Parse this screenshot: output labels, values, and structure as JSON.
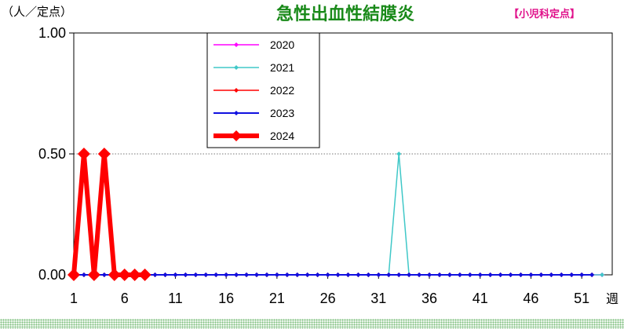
{
  "header": {
    "unit_label": "（人／定点）",
    "title": "急性出血性結膜炎",
    "subtitle": "【小児科定点】",
    "x_unit": "週"
  },
  "chart_data": {
    "type": "line",
    "title": "急性出血性結膜炎",
    "ylabel": "（人／定点）",
    "xlabel": "週",
    "ylim": [
      0,
      1
    ],
    "xlim": [
      1,
      53
    ],
    "yticks": [
      "0.00",
      "0.50",
      "1.00"
    ],
    "xticks": [
      1,
      6,
      11,
      16,
      21,
      26,
      31,
      36,
      41,
      46,
      51
    ],
    "grid": "horizontal dotted at 0.50",
    "legend_position": "top-left inside plot",
    "series": [
      {
        "name": "2020",
        "color": "#ff00ff",
        "width": 1.5,
        "marker": 3,
        "values": [
          0,
          0,
          0,
          0,
          0,
          0,
          0,
          0,
          0,
          0,
          0,
          0,
          0,
          0,
          0,
          0,
          0,
          0,
          0,
          0,
          0,
          0,
          0,
          0,
          0,
          0,
          0,
          0,
          0,
          0,
          0,
          0,
          0,
          0,
          0,
          0,
          0,
          0,
          0,
          0,
          0,
          0,
          0,
          0,
          0,
          0,
          0,
          0,
          0,
          0,
          0,
          0,
          0
        ]
      },
      {
        "name": "2021",
        "color": "#40c8c8",
        "width": 1.5,
        "marker": 3,
        "values": [
          0,
          0,
          0,
          0,
          0,
          0,
          0,
          0,
          0,
          0,
          0,
          0,
          0,
          0,
          0,
          0,
          0,
          0,
          0,
          0,
          0,
          0,
          0,
          0,
          0,
          0,
          0,
          0,
          0,
          0,
          0,
          0,
          0.5,
          0,
          0,
          0,
          0,
          0,
          0,
          0,
          0,
          0,
          0,
          0,
          0,
          0,
          0,
          0,
          0,
          0,
          0,
          0,
          0
        ]
      },
      {
        "name": "2022",
        "color": "#ff0000",
        "width": 1.5,
        "marker": 3,
        "values": [
          0,
          0,
          0,
          0,
          0,
          0,
          0,
          0,
          0,
          0,
          0,
          0,
          0,
          0,
          0,
          0,
          0,
          0,
          0,
          0,
          0,
          0,
          0,
          0,
          0,
          0,
          0,
          0,
          0,
          0,
          0,
          0,
          0,
          0,
          0,
          0,
          0,
          0,
          0,
          0,
          0,
          0,
          0,
          0,
          0,
          0,
          0,
          0,
          0,
          0,
          0,
          0
        ]
      },
      {
        "name": "2023",
        "color": "#1010e0",
        "width": 2,
        "marker": 3,
        "values": [
          0,
          0,
          0,
          0,
          0,
          0,
          0,
          0,
          0,
          0,
          0,
          0,
          0,
          0,
          0,
          0,
          0,
          0,
          0,
          0,
          0,
          0,
          0,
          0,
          0,
          0,
          0,
          0,
          0,
          0,
          0,
          0,
          0,
          0,
          0,
          0,
          0,
          0,
          0,
          0,
          0,
          0,
          0,
          0,
          0,
          0,
          0,
          0,
          0,
          0,
          0,
          0
        ]
      },
      {
        "name": "2024",
        "color": "#ff0000",
        "width": 6,
        "marker": 8,
        "values": [
          0,
          0.5,
          0,
          0.5,
          0,
          0,
          0,
          0
        ]
      }
    ]
  }
}
